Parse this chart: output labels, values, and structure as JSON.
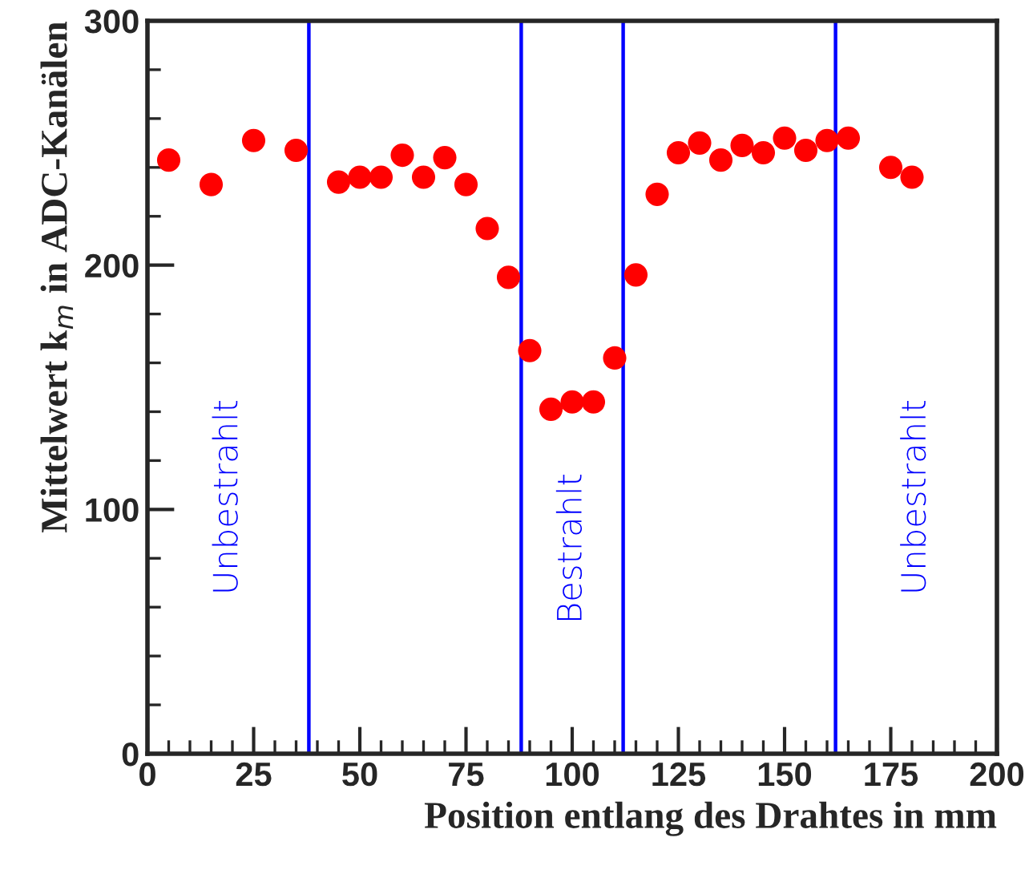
{
  "chart_data": {
    "type": "scatter",
    "xlabel": "Position entlang des Drahtes in mm",
    "ylabel": "Mittelwert k$_{m}$ in ADC-Kanälen",
    "x": [
      5,
      15,
      25,
      35,
      45,
      50,
      55,
      60,
      65,
      70,
      75,
      80,
      85,
      90,
      95,
      100,
      105,
      110,
      115,
      120,
      125,
      130,
      135,
      140,
      145,
      150,
      155,
      160,
      165,
      175,
      180
    ],
    "series": [
      {
        "color": "#ff0000",
        "values": [
          243,
          233,
          251,
          247,
          234,
          236,
          236,
          245,
          236,
          244,
          233,
          215,
          195,
          165,
          141,
          144,
          144,
          162,
          196,
          229,
          246,
          250,
          243,
          249,
          246,
          252,
          247,
          251,
          252,
          240,
          236
        ]
      }
    ],
    "marker": "circle",
    "xlim": [
      0,
      200
    ],
    "xticks": [
      0,
      25,
      50,
      75,
      100,
      125,
      150,
      175,
      200
    ],
    "ylim": [
      0,
      300
    ],
    "yticks": [
      0,
      100,
      200,
      300
    ],
    "ref_lines": [
      {
        "axis": "x",
        "value": 38,
        "color": "#0000ff"
      },
      {
        "axis": "x",
        "value": 88,
        "color": "#0000ff"
      },
      {
        "axis": "x",
        "value": 112,
        "color": "#0000ff"
      },
      {
        "axis": "x",
        "value": 162,
        "color": "#0000ff"
      }
    ],
    "annotations": [
      "Unbestrahlt",
      "Bestrahlt",
      "Unbestrahlt"
    ],
    "grid": false,
    "legend": false
  }
}
